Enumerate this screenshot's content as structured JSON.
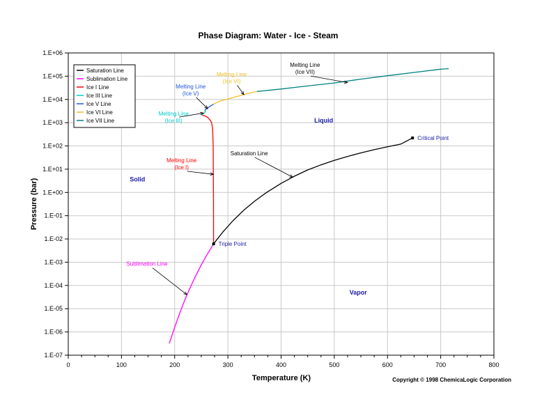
{
  "chart_data": {
    "type": "line",
    "title": "Phase Diagram: Water - Ice - Steam",
    "xlabel": "Temperature (K)",
    "ylabel": "Pressure (bar)",
    "xlim": [
      0,
      800
    ],
    "ylim_log10": [
      -7,
      6
    ],
    "y_scale": "log",
    "grid": true,
    "legend_position": "top-left",
    "x_ticks": [
      "0",
      "100",
      "200",
      "300",
      "400",
      "500",
      "600",
      "700",
      "800"
    ],
    "y_ticks": [
      "1.E-07",
      "1.E-06",
      "1.E-05",
      "1.E-04",
      "1.E-03",
      "1.E-02",
      "1.E-01",
      "1.E+00",
      "1.E+01",
      "1.E+02",
      "1.E+03",
      "1.E+04",
      "1.E+05",
      "1.E+06"
    ],
    "series": [
      {
        "name": "Saturation Line",
        "color": "#000000",
        "x": [
          273.16,
          290,
          310,
          330,
          350,
          373,
          400,
          425,
          450,
          475,
          500,
          525,
          550,
          575,
          600,
          625,
          647.1
        ],
        "y": [
          0.00612,
          0.0192,
          0.0624,
          0.172,
          0.417,
          1.01,
          2.46,
          5.0,
          9.3,
          15.4,
          24.1,
          35.5,
          50.3,
          69.0,
          92.0,
          120.0,
          220.6
        ]
      },
      {
        "name": "Sublimation Line",
        "color": "#ff00ff",
        "x": [
          190,
          200,
          210,
          220,
          230,
          240,
          250,
          260,
          273.16
        ],
        "y": [
          3.2e-07,
          1.6e-06,
          6.9e-06,
          2.7e-05,
          8.9e-05,
          0.00027,
          0.00076,
          0.00196,
          0.00612
        ]
      },
      {
        "name": "Ice I Line",
        "color": "#ff0000",
        "x": [
          273.16,
          272.9,
          272.4,
          271.4,
          269.5,
          266.5,
          262,
          256,
          251.2
        ],
        "y": [
          0.00612,
          1,
          100,
          500,
          1000,
          1300,
          1700,
          2000,
          2100
        ]
      },
      {
        "name": "Ice III Line",
        "color": "#00cccc",
        "x": [
          251.2,
          253,
          256,
          258,
          256.2
        ],
        "y": [
          2100,
          2300,
          2700,
          3200,
          3460
        ]
      },
      {
        "name": "Ice V Line",
        "color": "#2255dd",
        "x": [
          256.2,
          260,
          266,
          273.3
        ],
        "y": [
          3460,
          4000,
          5000,
          6300
        ]
      },
      {
        "name": "Ice VI Line",
        "color": "#f0c020",
        "x": [
          273.3,
          285,
          300,
          320,
          340,
          355
        ],
        "y": [
          6300,
          8500,
          10500,
          14000,
          18500,
          22000
        ]
      },
      {
        "name": "Ice VII Line",
        "color": "#008080",
        "x": [
          355,
          400,
          450,
          500,
          550,
          600,
          650,
          700,
          715
        ],
        "y": [
          22000,
          28000,
          38000,
          51000,
          75000,
          105000,
          145000,
          200000,
          210000
        ]
      }
    ],
    "points": [
      {
        "name": "triple-point",
        "label": "Triple Point",
        "x": 273.16,
        "y": 0.00612
      },
      {
        "name": "critical-point",
        "label": "Critical Point",
        "x": 647.1,
        "y": 220.6
      }
    ],
    "regions": [
      {
        "name": "solid",
        "label": "Solid",
        "x": 130,
        "y": 3
      },
      {
        "name": "liquid",
        "label": "Liquid",
        "x": 480,
        "y": 1000
      },
      {
        "name": "vapor",
        "label": "Vapor",
        "x": 545,
        "y": 4e-05
      }
    ],
    "annotations": [
      {
        "name": "melting-ice-vii",
        "lines": [
          "Melting Line",
          "(Ice VII)"
        ],
        "color": "#000000",
        "text_x": 445,
        "text_y": 250000,
        "arrow_x": 525,
        "arrow_y": 53000
      },
      {
        "name": "melting-ice-vi",
        "lines": [
          "Melting Line",
          "(Ice VI)"
        ],
        "color": "#f0c020",
        "text_x": 307,
        "text_y": 100000,
        "arrow_x": 330,
        "arrow_y": 16000
      },
      {
        "name": "melting-ice-v",
        "lines": [
          "Melting Line",
          "(Ice V)"
        ],
        "color": "#2255dd",
        "text_x": 230,
        "text_y": 30000,
        "arrow_x": 262,
        "arrow_y": 4000
      },
      {
        "name": "melting-ice-iii",
        "lines": [
          "Melting Line",
          "(Ice III)"
        ],
        "color": "#00cccc",
        "text_x": 198,
        "text_y": 2000,
        "arrow_x": 254,
        "arrow_y": 2600
      },
      {
        "name": "melting-ice-i",
        "lines": [
          "Melting Line",
          "(Ice I)"
        ],
        "color": "#ff0000",
        "text_x": 213,
        "text_y": 20,
        "arrow_x": 272.9,
        "arrow_y": 6
      },
      {
        "name": "saturation-line",
        "lines": [
          "Saturation Line"
        ],
        "color": "#000000",
        "text_x": 340,
        "text_y": 40,
        "arrow_x": 422,
        "arrow_y": 4.5
      },
      {
        "name": "sublimation-line",
        "lines": [
          "Sublimation Line"
        ],
        "color": "#ff00ff",
        "text_x": 148,
        "text_y": 0.0007,
        "arrow_x": 223,
        "arrow_y": 4e-05
      }
    ],
    "copyright": "Copyright © 1998 ChemicaLogic Corporation"
  }
}
